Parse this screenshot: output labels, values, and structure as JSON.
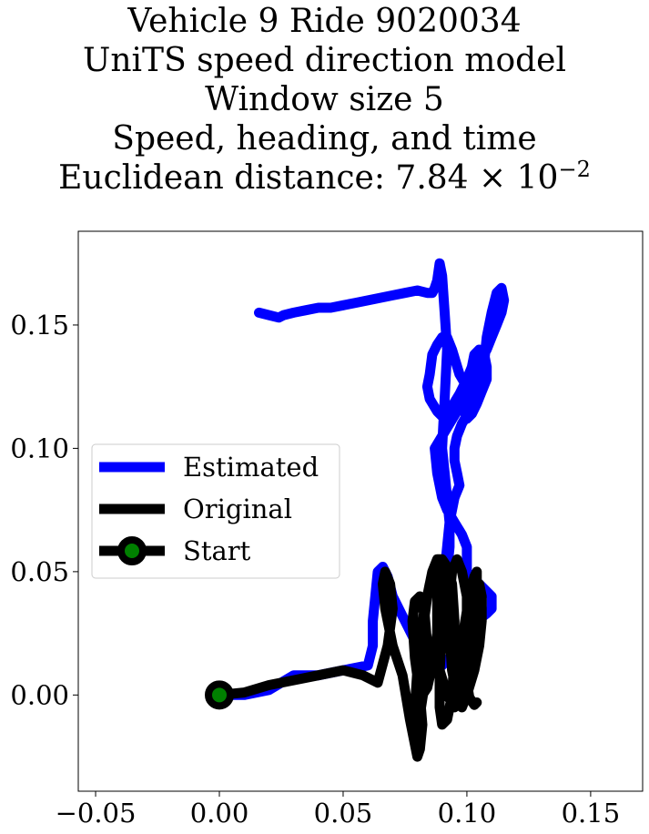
{
  "title": {
    "line1": "Vehicle 9 Ride 9020034",
    "line2": "UniTS speed direction model",
    "line3": "Window size 5",
    "line4": "Speed, heading, and time",
    "line5_prefix": "Euclidean distance: 7.84 × 10",
    "line5_exponent": "−2"
  },
  "chart_data": {
    "type": "line",
    "xlim": [
      -0.057,
      0.171
    ],
    "ylim": [
      -0.039,
      0.188
    ],
    "x_ticks": [
      -0.05,
      0.0,
      0.05,
      0.1,
      0.15
    ],
    "x_tick_labels": [
      "−0.05",
      "0.00",
      "0.05",
      "0.10",
      "0.15"
    ],
    "y_ticks": [
      0.0,
      0.05,
      0.1,
      0.15
    ],
    "y_tick_labels": [
      "0.00",
      "0.05",
      "0.10",
      "0.15"
    ],
    "grid": false,
    "legend_position": "center-left",
    "legend": [
      {
        "label": "Estimated",
        "color": "#0000ff",
        "marker": "none"
      },
      {
        "label": "Original",
        "color": "#000000",
        "marker": "none"
      },
      {
        "label": "Start",
        "color": "#000000",
        "marker": "circle",
        "marker_face": "#008000"
      }
    ],
    "series": [
      {
        "name": "Estimated",
        "color": "#0000ff",
        "x": [
          0.0,
          0.01,
          0.02,
          0.03,
          0.04,
          0.05,
          0.06,
          0.062,
          0.062,
          0.063,
          0.064,
          0.066,
          0.068,
          0.07,
          0.075,
          0.08,
          0.082,
          0.085,
          0.09,
          0.093,
          0.096,
          0.1,
          0.104,
          0.108,
          0.11,
          0.11,
          0.105,
          0.1,
          0.1,
          0.098,
          0.095,
          0.092,
          0.09,
          0.088,
          0.087,
          0.09,
          0.093,
          0.096,
          0.099,
          0.1,
          0.097,
          0.094,
          0.092,
          0.09,
          0.088,
          0.086,
          0.085,
          0.084,
          0.085,
          0.088,
          0.09,
          0.094,
          0.097,
          0.1,
          0.102,
          0.103,
          0.105,
          0.107,
          0.108,
          0.108,
          0.106,
          0.104,
          0.102,
          0.1,
          0.099,
          0.1,
          0.102,
          0.105,
          0.108,
          0.11,
          0.112,
          0.114,
          0.115,
          0.114,
          0.112,
          0.11,
          0.108,
          0.107,
          0.106,
          0.104,
          0.101,
          0.098,
          0.096,
          0.095,
          0.095,
          0.096,
          0.097,
          0.095,
          0.093,
          0.092,
          0.091,
          0.091,
          0.092,
          0.093,
          0.093,
          0.092,
          0.091,
          0.09,
          0.091,
          0.092,
          0.091,
          0.09,
          0.089,
          0.088,
          0.087,
          0.086,
          0.084,
          0.08,
          0.075,
          0.07,
          0.065,
          0.06,
          0.055,
          0.05,
          0.045,
          0.04,
          0.035,
          0.03,
          0.026,
          0.024,
          0.02,
          0.016
        ],
        "y": [
          0.0,
          0.0,
          0.002,
          0.008,
          0.008,
          0.01,
          0.012,
          0.02,
          0.03,
          0.04,
          0.05,
          0.052,
          0.048,
          0.04,
          0.03,
          0.02,
          0.015,
          0.012,
          0.012,
          0.015,
          0.02,
          0.025,
          0.03,
          0.033,
          0.035,
          0.04,
          0.045,
          0.05,
          0.06,
          0.065,
          0.07,
          0.075,
          0.08,
          0.09,
          0.1,
          0.105,
          0.11,
          0.115,
          0.12,
          0.125,
          0.13,
          0.14,
          0.145,
          0.145,
          0.142,
          0.138,
          0.13,
          0.125,
          0.12,
          0.115,
          0.113,
          0.117,
          0.122,
          0.128,
          0.133,
          0.138,
          0.14,
          0.138,
          0.133,
          0.128,
          0.123,
          0.118,
          0.114,
          0.112,
          0.115,
          0.12,
          0.128,
          0.135,
          0.14,
          0.145,
          0.15,
          0.155,
          0.16,
          0.165,
          0.163,
          0.155,
          0.145,
          0.135,
          0.128,
          0.12,
          0.115,
          0.11,
          0.105,
          0.1,
          0.095,
          0.09,
          0.085,
          0.08,
          0.07,
          0.06,
          0.05,
          0.04,
          0.05,
          0.06,
          0.07,
          0.08,
          0.09,
          0.1,
          0.12,
          0.14,
          0.155,
          0.17,
          0.175,
          0.168,
          0.165,
          0.163,
          0.163,
          0.164,
          0.163,
          0.162,
          0.161,
          0.16,
          0.159,
          0.158,
          0.157,
          0.157,
          0.156,
          0.155,
          0.154,
          0.153,
          0.154,
          0.155
        ]
      },
      {
        "name": "Original",
        "color": "#000000",
        "x": [
          0.0,
          0.01,
          0.02,
          0.03,
          0.04,
          0.05,
          0.058,
          0.064,
          0.068,
          0.07,
          0.069,
          0.067,
          0.066,
          0.067,
          0.07,
          0.074,
          0.077,
          0.079,
          0.08,
          0.081,
          0.082,
          0.081,
          0.079,
          0.078,
          0.079,
          0.081,
          0.083,
          0.084,
          0.083,
          0.081,
          0.079,
          0.079,
          0.08,
          0.082,
          0.084,
          0.086,
          0.088,
          0.09,
          0.091,
          0.09,
          0.088,
          0.086,
          0.084,
          0.082,
          0.08,
          0.08,
          0.082,
          0.085,
          0.088,
          0.09,
          0.092,
          0.094,
          0.095,
          0.095,
          0.094,
          0.092,
          0.09,
          0.089,
          0.089,
          0.09,
          0.091,
          0.091,
          0.09,
          0.089,
          0.088,
          0.088,
          0.089,
          0.092,
          0.095,
          0.097,
          0.099,
          0.1,
          0.1,
          0.098,
          0.096,
          0.094,
          0.093,
          0.093,
          0.094,
          0.096,
          0.098,
          0.1,
          0.102,
          0.103,
          0.104,
          0.104,
          0.103,
          0.101,
          0.099,
          0.097,
          0.096,
          0.096,
          0.098,
          0.1,
          0.103,
          0.105,
          0.106,
          0.106,
          0.105,
          0.103,
          0.101,
          0.1,
          0.1,
          0.101,
          0.103,
          0.104
        ],
        "y": [
          0.0,
          0.001,
          0.004,
          0.006,
          0.008,
          0.01,
          0.008,
          0.005,
          0.02,
          0.035,
          0.045,
          0.05,
          0.045,
          0.035,
          0.02,
          0.008,
          -0.01,
          -0.02,
          -0.025,
          -0.022,
          -0.012,
          0.0,
          0.015,
          0.03,
          0.038,
          0.04,
          0.032,
          0.02,
          0.005,
          -0.008,
          -0.012,
          -0.005,
          0.01,
          0.025,
          0.04,
          0.05,
          0.055,
          0.055,
          0.05,
          0.04,
          0.025,
          0.012,
          0.003,
          0.0,
          0.005,
          0.015,
          0.03,
          0.045,
          0.052,
          0.055,
          0.052,
          0.045,
          0.03,
          0.015,
          0.0,
          -0.01,
          -0.012,
          -0.005,
          0.01,
          0.025,
          0.04,
          0.05,
          0.055,
          0.05,
          0.04,
          0.025,
          0.01,
          0.0,
          -0.005,
          0.0,
          0.012,
          0.028,
          0.04,
          0.05,
          0.055,
          0.05,
          0.04,
          0.025,
          0.01,
          0.0,
          -0.005,
          0.0,
          0.015,
          0.03,
          0.045,
          0.05,
          0.048,
          0.04,
          0.028,
          0.015,
          0.005,
          -0.002,
          -0.005,
          0.0,
          0.01,
          0.02,
          0.03,
          0.04,
          0.045,
          0.04,
          0.028,
          0.015,
          0.005,
          -0.001,
          -0.004,
          -0.003
        ]
      },
      {
        "name": "Start",
        "color": "#000000",
        "marker_face": "#008000",
        "x": [
          0.0
        ],
        "y": [
          0.0
        ]
      }
    ]
  }
}
